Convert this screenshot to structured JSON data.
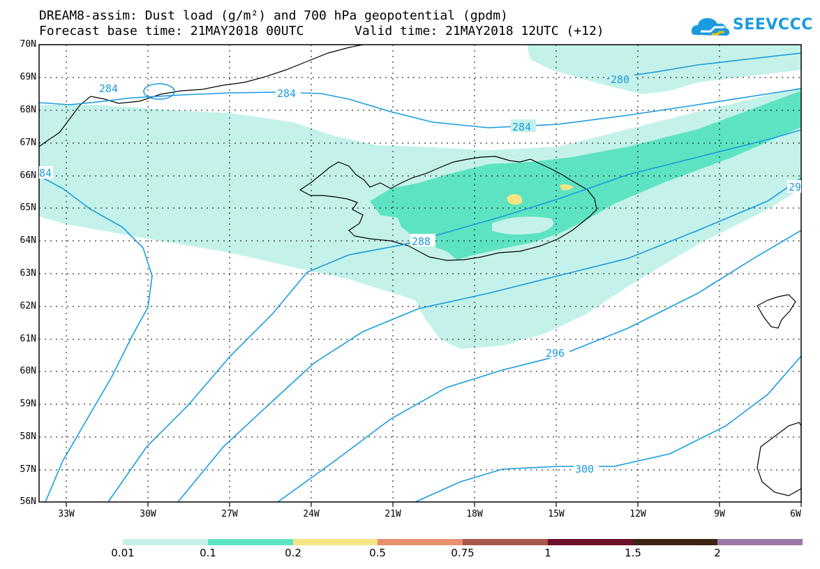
{
  "header": {
    "title_line1": "DREAM8-assim: Dust load (g/m²) and 700 hPa geopotential (gpdm)",
    "forecast_base": "Forecast base time: 21MAY2018 00UTC",
    "valid_time": "Valid time: 21MAY2018 12UTC (+12)"
  },
  "logo": {
    "text": "SEEVCCC",
    "icon": "cloud-icon",
    "color": "#1a9be0"
  },
  "map": {
    "lat_labels": [
      "70N",
      "69N",
      "68N",
      "67N",
      "66N",
      "65N",
      "64N",
      "63N",
      "62N",
      "61N",
      "60N",
      "59N",
      "58N",
      "57N",
      "56N"
    ],
    "lon_labels": [
      "33W",
      "30W",
      "27W",
      "24W",
      "21W",
      "18W",
      "15W",
      "12W",
      "9W",
      "6W"
    ],
    "contour_labels": [
      "284",
      "284",
      "284",
      "280",
      "284",
      "288",
      "296",
      "300",
      "84",
      "29"
    ],
    "contour_color": "#1a9be0"
  },
  "colorbar": {
    "labels": [
      "0.01",
      "0.1",
      "0.2",
      "0.5",
      "0.75",
      "1",
      "1.5",
      "2"
    ],
    "colors": [
      "#c4f2ea",
      "#5ee3c2",
      "#f6e686",
      "#e9906e",
      "#a8584a",
      "#6e0f2a",
      "#3d2414",
      "#9a77a6"
    ]
  }
}
